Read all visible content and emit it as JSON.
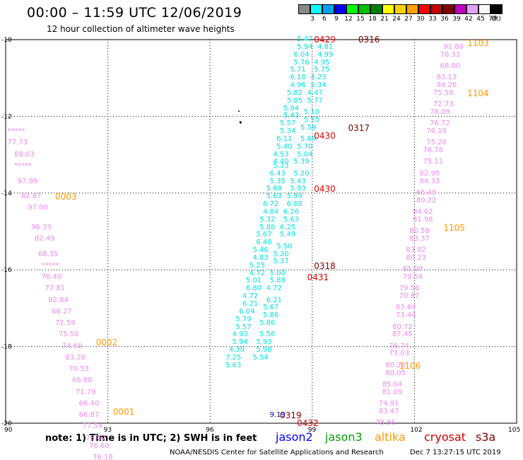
{
  "title": "00:00 – 11:59 UTC 12/06/2019",
  "subtitle": "12 hour collection of altimeter wave heights",
  "colorbar": {
    "labels": [
      "3",
      "6",
      "9",
      "12",
      "15",
      "18",
      "21",
      "24",
      "27",
      "30",
      "33",
      "36",
      "39",
      "42",
      "45",
      "70",
      "(ft)"
    ],
    "colors": [
      "#888888",
      "#00ffff",
      "#00a0ff",
      "#0000ff",
      "#00ff00",
      "#00c000",
      "#008000",
      "#ffff00",
      "#ffd000",
      "#ffa000",
      "#ff0000",
      "#c00000",
      "#800000",
      "#c000c0",
      "#e0a0ff",
      "#f8f8f8",
      "#000000"
    ]
  },
  "axes": {
    "lat_labels": [
      "-10",
      "-12",
      "-14",
      "-16",
      "-18",
      "-20"
    ],
    "lon_labels": [
      "90",
      "93",
      "96",
      "99",
      "102",
      "105"
    ]
  },
  "note": "note: 1) Time is in UTC; 2) SWH is in feet",
  "satellites": [
    {
      "name": "jason2",
      "color": "#0000ff"
    },
    {
      "name": "jason3",
      "color": "#00a000"
    },
    {
      "name": "altika",
      "color": "#ff9900"
    },
    {
      "name": "cryosat",
      "color": "#cc0000"
    },
    {
      "name": "s3a",
      "color": "#800000"
    }
  ],
  "credit": "NOAA/NESDIS Center for Satellite Applications and Research",
  "timestamp": "Dec  7 13:27:15 UTC 2019",
  "chart_data": {
    "type": "scatter",
    "xlim": [
      90,
      105
    ],
    "ylim": [
      -20,
      -10
    ],
    "colors": {
      "cyan": "#00e0e0",
      "pink": "#ee88ee",
      "orange": "#ff9900",
      "red": "#dd0000",
      "maroon": "#800000",
      "blue": "#0000aa"
    },
    "tracks": [
      {
        "name": "altika-west",
        "color": "pink",
        "points": [
          [
            90.3,
            -12.4,
            "*****"
          ],
          [
            90.3,
            -12.7,
            "77.73"
          ],
          [
            90.5,
            -13.0,
            "88.03"
          ],
          [
            90.5,
            -13.3,
            "*****"
          ],
          [
            90.6,
            -13.7,
            "97.89"
          ],
          [
            90.7,
            -14.1,
            "82.87"
          ],
          [
            90.9,
            -14.4,
            "97.00"
          ],
          [
            91.0,
            -14.9,
            "96.33"
          ],
          [
            91.1,
            -15.2,
            "82.49"
          ],
          [
            91.2,
            -15.6,
            "68.35"
          ],
          [
            91.3,
            -15.9,
            "*****"
          ],
          [
            91.3,
            -16.2,
            "76.40"
          ],
          [
            91.4,
            -16.5,
            "77.81"
          ],
          [
            91.5,
            -16.8,
            "92.84"
          ],
          [
            91.6,
            -17.1,
            "66.27"
          ],
          [
            91.7,
            -17.4,
            "72.59"
          ],
          [
            91.8,
            -17.7,
            "75.50"
          ],
          [
            91.9,
            -18.0,
            "74.60"
          ],
          [
            92.0,
            -18.3,
            "83.26"
          ],
          [
            92.1,
            -18.6,
            "70.53"
          ],
          [
            92.2,
            -18.9,
            "66.88"
          ],
          [
            92.3,
            -19.2,
            "71.79"
          ],
          [
            92.4,
            -19.5,
            "66.40"
          ],
          [
            92.4,
            -19.8,
            "66.87"
          ],
          [
            92.5,
            -20.1,
            "77.54"
          ],
          [
            92.6,
            -20.4,
            "78.67"
          ],
          [
            92.7,
            -20.6,
            "76.60"
          ],
          [
            92.8,
            -20.9,
            "76.18"
          ]
        ]
      },
      {
        "name": "jason-desc",
        "color": "cyan",
        "points": [
          [
            98.8,
            -10.0,
            "5.47"
          ],
          [
            98.8,
            -10.2,
            "5.94"
          ],
          [
            98.7,
            -10.4,
            "6.04"
          ],
          [
            98.7,
            -10.6,
            "5.76"
          ],
          [
            98.6,
            -10.8,
            "5.71"
          ],
          [
            98.6,
            -11.0,
            "6.10"
          ],
          [
            98.6,
            -11.2,
            "4.96"
          ],
          [
            98.5,
            -11.4,
            "5.82"
          ],
          [
            98.5,
            -11.6,
            "5.85"
          ],
          [
            98.4,
            -11.8,
            "5.94"
          ],
          [
            98.4,
            -12.0,
            "5.43"
          ],
          [
            98.3,
            -12.2,
            "5.57"
          ],
          [
            98.3,
            -12.4,
            "5.34"
          ],
          [
            98.2,
            -12.6,
            "6.11"
          ],
          [
            98.2,
            -12.8,
            "5.40"
          ],
          [
            98.1,
            -13.0,
            "4.53"
          ],
          [
            98.1,
            -13.2,
            "4.40"
          ],
          [
            98.1,
            -13.3,
            "5.33"
          ],
          [
            98.0,
            -13.5,
            "6.43"
          ],
          [
            98.0,
            -13.7,
            "5.35"
          ],
          [
            97.9,
            -13.9,
            "5.69"
          ],
          [
            97.9,
            -14.1,
            "5.63"
          ],
          [
            97.8,
            -14.3,
            "6.72"
          ],
          [
            97.8,
            -14.5,
            "4.84"
          ],
          [
            97.7,
            -14.7,
            "5.32"
          ],
          [
            97.7,
            -14.9,
            "5.88"
          ],
          [
            97.6,
            -15.1,
            "5.67"
          ],
          [
            97.6,
            -15.3,
            "6.40"
          ],
          [
            97.5,
            -15.5,
            "5.46"
          ],
          [
            97.5,
            -15.7,
            "4.83"
          ],
          [
            97.4,
            -15.9,
            "5.25"
          ],
          [
            97.4,
            -16.1,
            "4.72"
          ],
          [
            97.3,
            -16.3,
            "5.01"
          ],
          [
            97.3,
            -16.5,
            "6.80"
          ],
          [
            97.2,
            -16.7,
            "4.72"
          ],
          [
            97.2,
            -16.9,
            "6.21"
          ],
          [
            97.1,
            -17.1,
            "6.04"
          ],
          [
            97.0,
            -17.3,
            "5.79"
          ],
          [
            97.0,
            -17.5,
            "5.57"
          ],
          [
            96.9,
            -17.7,
            "4.93"
          ],
          [
            96.9,
            -17.9,
            "5.94"
          ],
          [
            96.8,
            -18.1,
            "4.30"
          ],
          [
            96.7,
            -18.3,
            "7.25"
          ],
          [
            96.7,
            -18.5,
            "5.63"
          ]
        ]
      },
      {
        "name": "jason-asc",
        "color": "cyan",
        "points": [
          [
            99.4,
            -10.2,
            "4.81"
          ],
          [
            99.4,
            -10.4,
            "4.99"
          ],
          [
            99.3,
            -10.6,
            "4.95"
          ],
          [
            99.3,
            -10.8,
            "5.75"
          ],
          [
            99.2,
            -11.0,
            "4.23"
          ],
          [
            99.2,
            -11.2,
            "5.34"
          ],
          [
            99.1,
            -11.4,
            "4.47"
          ],
          [
            99.1,
            -11.6,
            "5.77"
          ],
          [
            99.0,
            -11.9,
            "5.10"
          ],
          [
            99.0,
            -12.1,
            "5.55"
          ],
          [
            98.9,
            -12.3,
            "5.59"
          ],
          [
            98.9,
            -12.6,
            "5.69"
          ],
          [
            98.8,
            -12.8,
            "5.70"
          ],
          [
            98.8,
            -13.0,
            "5.04"
          ],
          [
            98.7,
            -13.2,
            "5.39"
          ],
          [
            98.7,
            -13.5,
            "5.20"
          ],
          [
            98.6,
            -13.7,
            "5.43"
          ],
          [
            98.6,
            -13.9,
            "5.93"
          ],
          [
            98.5,
            -14.1,
            "5.99"
          ],
          [
            98.5,
            -14.3,
            "6.08"
          ],
          [
            98.4,
            -14.5,
            "6.26"
          ],
          [
            98.4,
            -14.7,
            "5.63"
          ],
          [
            98.3,
            -14.9,
            "6.25"
          ],
          [
            98.3,
            -15.1,
            "5.49"
          ],
          [
            98.2,
            -15.4,
            "5.50"
          ],
          [
            98.1,
            -15.6,
            "5.20"
          ],
          [
            98.1,
            -15.8,
            "5.37"
          ],
          [
            98.0,
            -16.1,
            "5.00"
          ],
          [
            98.0,
            -16.3,
            "5.88"
          ],
          [
            97.9,
            -16.5,
            "4.72"
          ],
          [
            97.9,
            -16.8,
            "6.21"
          ],
          [
            97.8,
            -17.0,
            "5.67"
          ],
          [
            97.8,
            -17.2,
            "5.86"
          ],
          [
            97.7,
            -17.4,
            "5.86"
          ],
          [
            97.7,
            -17.7,
            "5.56"
          ],
          [
            97.6,
            -17.9,
            "5.93"
          ],
          [
            97.6,
            -18.1,
            "5.98"
          ],
          [
            97.5,
            -18.3,
            "5.54"
          ]
        ]
      },
      {
        "name": "altika-east",
        "color": "pink",
        "points": [
          [
            103.1,
            -10.2,
            "91.80"
          ],
          [
            103.0,
            -10.4,
            "76.33"
          ],
          [
            103.0,
            -10.7,
            "68.00"
          ],
          [
            102.9,
            -11.0,
            "83.13"
          ],
          [
            102.9,
            -11.2,
            "84.26"
          ],
          [
            102.8,
            -11.4,
            "75.58"
          ],
          [
            102.8,
            -11.7,
            "72.73"
          ],
          [
            102.7,
            -11.9,
            "78.09"
          ],
          [
            102.7,
            -12.2,
            "76.72"
          ],
          [
            102.6,
            -12.4,
            "76.10"
          ],
          [
            102.6,
            -12.7,
            "75.20"
          ],
          [
            102.5,
            -12.9,
            "76.78"
          ],
          [
            102.5,
            -13.2,
            "75.11"
          ],
          [
            102.4,
            -13.5,
            "82.95"
          ],
          [
            102.4,
            -13.7,
            "84.33"
          ],
          [
            102.3,
            -14.0,
            "65.48"
          ],
          [
            102.3,
            -14.2,
            "80.22"
          ],
          [
            102.2,
            -14.5,
            "84.62"
          ],
          [
            102.2,
            -14.7,
            "81.98"
          ],
          [
            102.1,
            -15.0,
            "80.58"
          ],
          [
            102.1,
            -15.2,
            "83.37"
          ],
          [
            102.0,
            -15.5,
            "83.02"
          ],
          [
            102.0,
            -15.7,
            "80.23"
          ],
          [
            101.9,
            -16.0,
            "81.09"
          ],
          [
            101.9,
            -16.2,
            "79.54"
          ],
          [
            101.8,
            -16.5,
            "79.56"
          ],
          [
            101.8,
            -16.7,
            "70.87"
          ],
          [
            101.7,
            -17.0,
            "83.64"
          ],
          [
            101.7,
            -17.2,
            "73.44"
          ],
          [
            101.6,
            -17.5,
            "80.72"
          ],
          [
            101.6,
            -17.7,
            "87.45"
          ],
          [
            101.5,
            -18.0,
            "76.74"
          ],
          [
            101.5,
            -18.2,
            "73.03"
          ],
          [
            101.4,
            -18.5,
            "80.26"
          ],
          [
            101.4,
            -18.7,
            "80.05"
          ],
          [
            101.3,
            -19.0,
            "85.04"
          ],
          [
            101.3,
            -19.2,
            "81.09"
          ],
          [
            101.2,
            -19.5,
            "74.91"
          ],
          [
            101.2,
            -19.7,
            "83.47"
          ],
          [
            101.1,
            -20.0,
            "78.86"
          ]
        ]
      }
    ],
    "time_labels": [
      {
        "lon": 100.6,
        "lat": -10.0,
        "text": "0316",
        "color": "maroon"
      },
      {
        "lon": 99.3,
        "lat": -10.0,
        "text": "0429",
        "color": "red"
      },
      {
        "lon": 103.8,
        "lat": -10.1,
        "text": "1103",
        "color": "orange"
      },
      {
        "lon": 103.8,
        "lat": -11.4,
        "text": "1104",
        "color": "orange"
      },
      {
        "lon": 100.3,
        "lat": -12.3,
        "text": "0317",
        "color": "maroon"
      },
      {
        "lon": 99.3,
        "lat": -12.5,
        "text": "0430",
        "color": "red"
      },
      {
        "lon": 91.7,
        "lat": -14.1,
        "text": "0003",
        "color": "orange"
      },
      {
        "lon": 99.3,
        "lat": -13.9,
        "text": "0430",
        "color": "red"
      },
      {
        "lon": 103.1,
        "lat": -14.9,
        "text": "1105",
        "color": "orange"
      },
      {
        "lon": 99.3,
        "lat": -15.9,
        "text": "0318",
        "color": "maroon"
      },
      {
        "lon": 99.1,
        "lat": -16.2,
        "text": "0431",
        "color": "red"
      },
      {
        "lon": 92.9,
        "lat": -17.9,
        "text": "0002",
        "color": "orange"
      },
      {
        "lon": 101.8,
        "lat": -18.5,
        "text": "1106",
        "color": "orange"
      },
      {
        "lon": 98.3,
        "lat": -19.8,
        "text": "0319",
        "color": "maroon"
      },
      {
        "lon": 98.8,
        "lat": -20.0,
        "text": "0432",
        "color": "red"
      },
      {
        "lon": 93.4,
        "lat": -19.7,
        "text": "0001",
        "color": "orange"
      },
      {
        "lon": 98.0,
        "lat": -19.8,
        "text": "9.19",
        "color": "blue"
      }
    ]
  }
}
